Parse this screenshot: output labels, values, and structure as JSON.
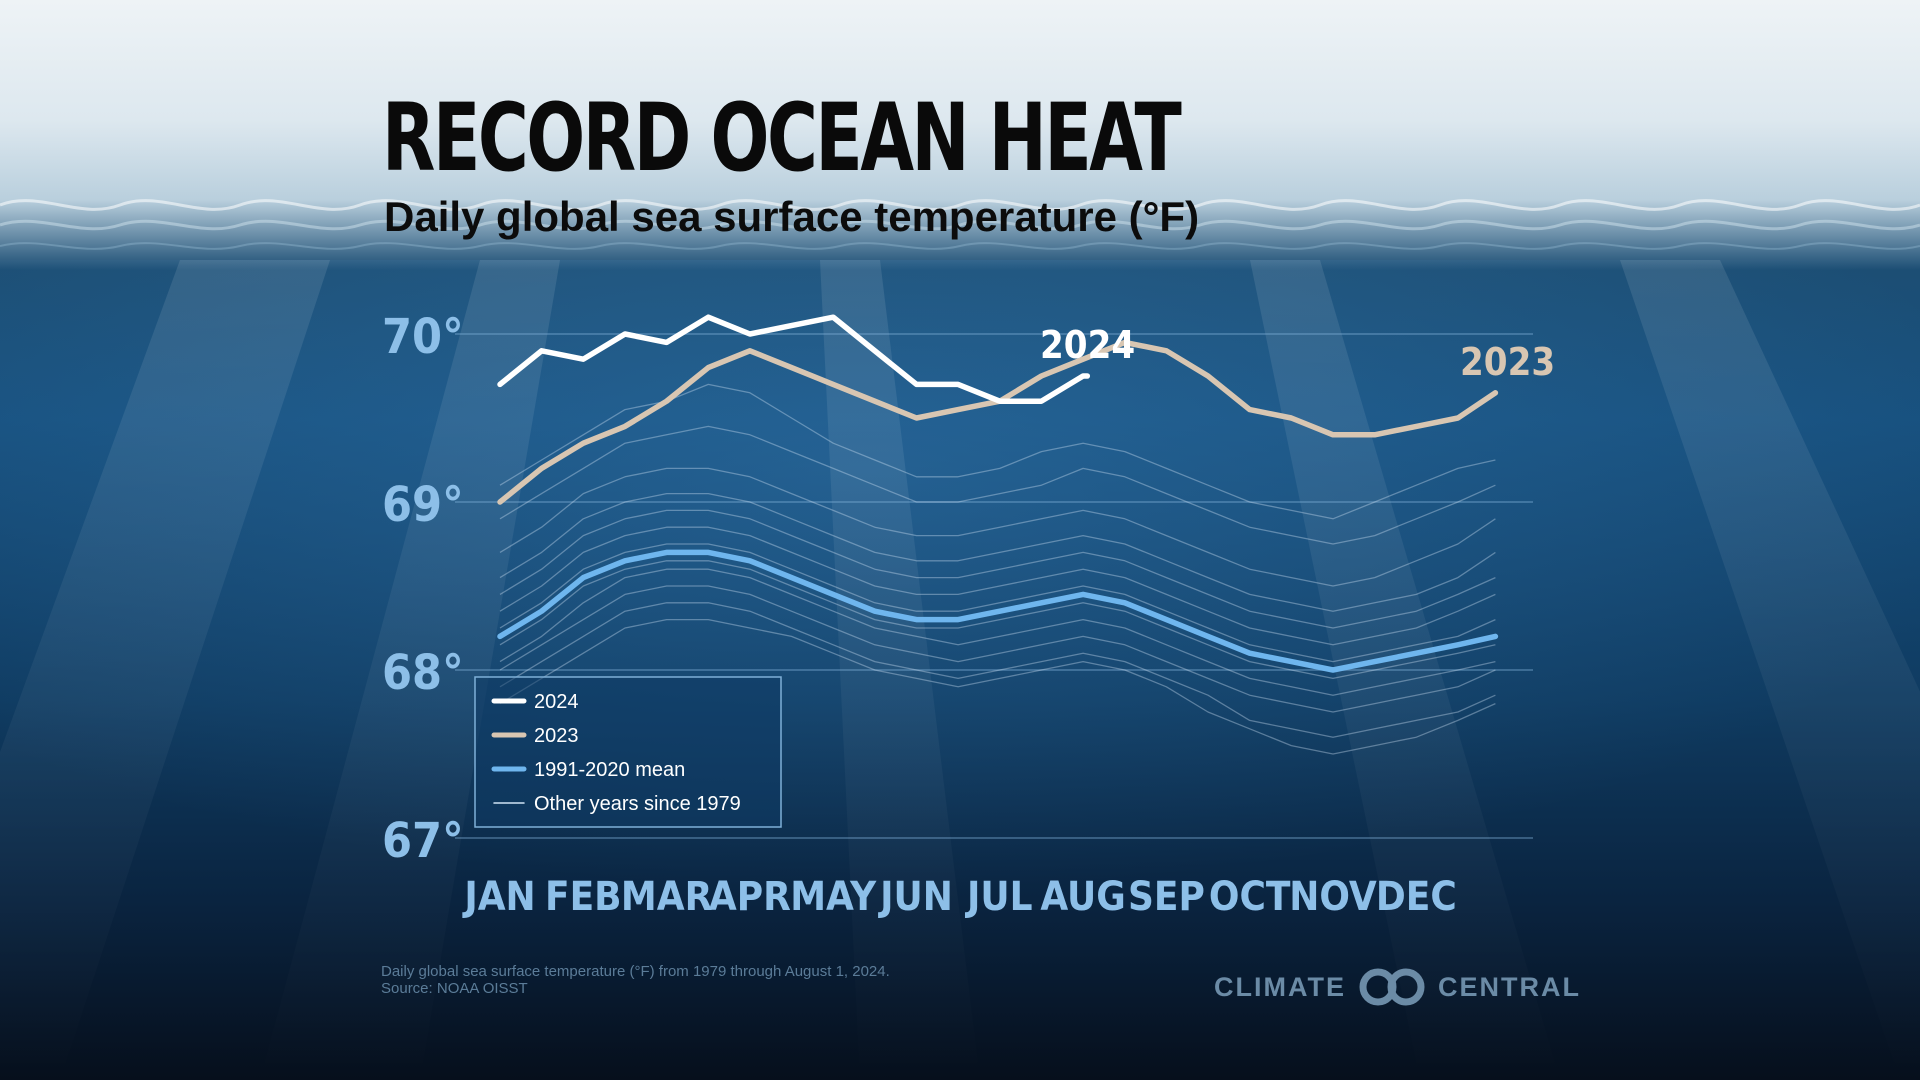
{
  "title": "RECORD OCEAN HEAT",
  "subtitle": "Daily global sea surface temperature (°F)",
  "footnote": {
    "line1": "Daily global sea surface temperature (°F) from 1979 through August 1, 2024.",
    "line2": "Source: NOAA OISST"
  },
  "logo": {
    "left": "CLIMATE",
    "right": "CENTRAL"
  },
  "colors": {
    "y2024": "#ffffff",
    "y2023": "#d8c6b2",
    "mean": "#6fb6ee",
    "other": "#cfe3f5",
    "tick": "#8dbfe8"
  },
  "chart_data": {
    "type": "line",
    "title": "Daily global sea surface temperature (°F)",
    "xlabel": "",
    "ylabel": "",
    "ylim": [
      67,
      70
    ],
    "xlim": [
      0,
      12
    ],
    "yticks": [
      67,
      68,
      69,
      70
    ],
    "ytick_labels": [
      "67°",
      "68°",
      "69°",
      "70°"
    ],
    "categories": [
      "JAN",
      "FEB",
      "MAR",
      "APR",
      "MAY",
      "JUN",
      "JUL",
      "AUG",
      "SEP",
      "OCT",
      "NOV",
      "DEC"
    ],
    "grid": true,
    "legend_position": "bottom-left",
    "legend": [
      "2024",
      "2023",
      "1991-2020 mean",
      "Other years since 1979"
    ],
    "series": [
      {
        "name": "2024",
        "end_label": "2024",
        "x": [
          0,
          0.5,
          1,
          1.5,
          2,
          2.5,
          3,
          3.5,
          4,
          4.5,
          5,
          5.5,
          6,
          6.5,
          7,
          7.05
        ],
        "values": [
          69.7,
          69.9,
          69.85,
          70.0,
          69.95,
          70.1,
          70.0,
          70.05,
          70.1,
          69.9,
          69.7,
          69.7,
          69.6,
          69.6,
          69.75,
          69.75
        ]
      },
      {
        "name": "2023",
        "end_label": "2023",
        "x": [
          0,
          0.5,
          1,
          1.5,
          2,
          2.5,
          3,
          3.5,
          4,
          4.5,
          5,
          5.5,
          6,
          6.5,
          7,
          7.5,
          8,
          8.5,
          9,
          9.5,
          10,
          10.5,
          11,
          11.5,
          11.95
        ],
        "values": [
          69.0,
          69.2,
          69.35,
          69.45,
          69.6,
          69.8,
          69.9,
          69.8,
          69.7,
          69.6,
          69.5,
          69.55,
          69.6,
          69.75,
          69.85,
          69.95,
          69.9,
          69.75,
          69.55,
          69.5,
          69.4,
          69.4,
          69.45,
          69.5,
          69.65
        ]
      },
      {
        "name": "1991-2020 mean",
        "x": [
          0,
          0.5,
          1,
          1.5,
          2,
          2.5,
          3,
          3.5,
          4,
          4.5,
          5,
          5.5,
          6,
          6.5,
          7,
          7.5,
          8,
          8.5,
          9,
          9.5,
          10,
          10.5,
          11,
          11.5,
          11.95
        ],
        "values": [
          68.2,
          68.35,
          68.55,
          68.65,
          68.7,
          68.7,
          68.65,
          68.55,
          68.45,
          68.35,
          68.3,
          68.3,
          68.35,
          68.4,
          68.45,
          68.4,
          68.3,
          68.2,
          68.1,
          68.05,
          68.0,
          68.05,
          68.1,
          68.15,
          68.2
        ]
      }
    ],
    "other_years": {
      "name": "Other years since 1979",
      "x": [
        0,
        0.5,
        1,
        1.5,
        2,
        2.5,
        3,
        3.5,
        4,
        4.5,
        5,
        5.5,
        6,
        6.5,
        7,
        7.5,
        8,
        8.5,
        9,
        9.5,
        10,
        10.5,
        11,
        11.5,
        11.95
      ],
      "lines": [
        [
          67.8,
          67.95,
          68.1,
          68.25,
          68.3,
          68.3,
          68.25,
          68.2,
          68.1,
          68.0,
          67.95,
          67.9,
          67.95,
          68.0,
          68.05,
          68.0,
          67.9,
          67.75,
          67.65,
          67.55,
          67.5,
          67.55,
          67.6,
          67.7,
          67.8
        ],
        [
          67.9,
          68.05,
          68.2,
          68.35,
          68.4,
          68.4,
          68.35,
          68.25,
          68.15,
          68.05,
          68.0,
          67.95,
          68.0,
          68.05,
          68.1,
          68.05,
          67.95,
          67.85,
          67.7,
          67.65,
          67.6,
          67.65,
          67.7,
          67.75,
          67.85
        ],
        [
          68.0,
          68.15,
          68.3,
          68.45,
          68.5,
          68.5,
          68.45,
          68.35,
          68.25,
          68.15,
          68.1,
          68.05,
          68.1,
          68.15,
          68.2,
          68.15,
          68.05,
          67.95,
          67.85,
          67.8,
          67.75,
          67.8,
          67.85,
          67.9,
          68.0
        ],
        [
          68.05,
          68.2,
          68.4,
          68.55,
          68.6,
          68.6,
          68.55,
          68.45,
          68.35,
          68.25,
          68.2,
          68.15,
          68.2,
          68.25,
          68.3,
          68.25,
          68.15,
          68.05,
          67.95,
          67.9,
          67.85,
          67.9,
          67.95,
          68.0,
          68.05
        ],
        [
          68.15,
          68.3,
          68.5,
          68.6,
          68.65,
          68.65,
          68.6,
          68.5,
          68.4,
          68.3,
          68.25,
          68.25,
          68.3,
          68.35,
          68.4,
          68.35,
          68.25,
          68.15,
          68.05,
          68.0,
          67.95,
          68.0,
          68.05,
          68.1,
          68.15
        ],
        [
          68.25,
          68.4,
          68.6,
          68.7,
          68.75,
          68.75,
          68.7,
          68.6,
          68.5,
          68.4,
          68.35,
          68.35,
          68.4,
          68.45,
          68.5,
          68.45,
          68.35,
          68.25,
          68.15,
          68.1,
          68.05,
          68.1,
          68.15,
          68.2,
          68.3
        ],
        [
          68.35,
          68.5,
          68.7,
          68.8,
          68.85,
          68.85,
          68.8,
          68.7,
          68.6,
          68.5,
          68.45,
          68.45,
          68.5,
          68.55,
          68.6,
          68.55,
          68.45,
          68.35,
          68.25,
          68.2,
          68.15,
          68.2,
          68.25,
          68.35,
          68.45
        ],
        [
          68.45,
          68.6,
          68.8,
          68.9,
          68.95,
          68.95,
          68.9,
          68.8,
          68.7,
          68.6,
          68.55,
          68.55,
          68.6,
          68.65,
          68.7,
          68.65,
          68.55,
          68.45,
          68.35,
          68.3,
          68.25,
          68.3,
          68.35,
          68.45,
          68.55
        ],
        [
          68.55,
          68.7,
          68.9,
          69.0,
          69.05,
          69.05,
          69.0,
          68.9,
          68.8,
          68.7,
          68.65,
          68.65,
          68.7,
          68.75,
          68.8,
          68.75,
          68.65,
          68.55,
          68.45,
          68.4,
          68.35,
          68.4,
          68.45,
          68.55,
          68.7
        ],
        [
          68.7,
          68.85,
          69.05,
          69.15,
          69.2,
          69.2,
          69.15,
          69.05,
          68.95,
          68.85,
          68.8,
          68.8,
          68.85,
          68.9,
          68.95,
          68.9,
          68.8,
          68.7,
          68.6,
          68.55,
          68.5,
          68.55,
          68.65,
          68.75,
          68.9
        ],
        [
          68.9,
          69.05,
          69.2,
          69.35,
          69.4,
          69.45,
          69.4,
          69.3,
          69.2,
          69.1,
          69.0,
          69.0,
          69.05,
          69.1,
          69.2,
          69.15,
          69.05,
          68.95,
          68.85,
          68.8,
          68.75,
          68.8,
          68.9,
          69.0,
          69.1
        ],
        [
          69.1,
          69.25,
          69.4,
          69.55,
          69.6,
          69.7,
          69.65,
          69.5,
          69.35,
          69.25,
          69.15,
          69.15,
          69.2,
          69.3,
          69.35,
          69.3,
          69.2,
          69.1,
          69.0,
          68.95,
          68.9,
          69.0,
          69.1,
          69.2,
          69.25
        ]
      ]
    }
  }
}
